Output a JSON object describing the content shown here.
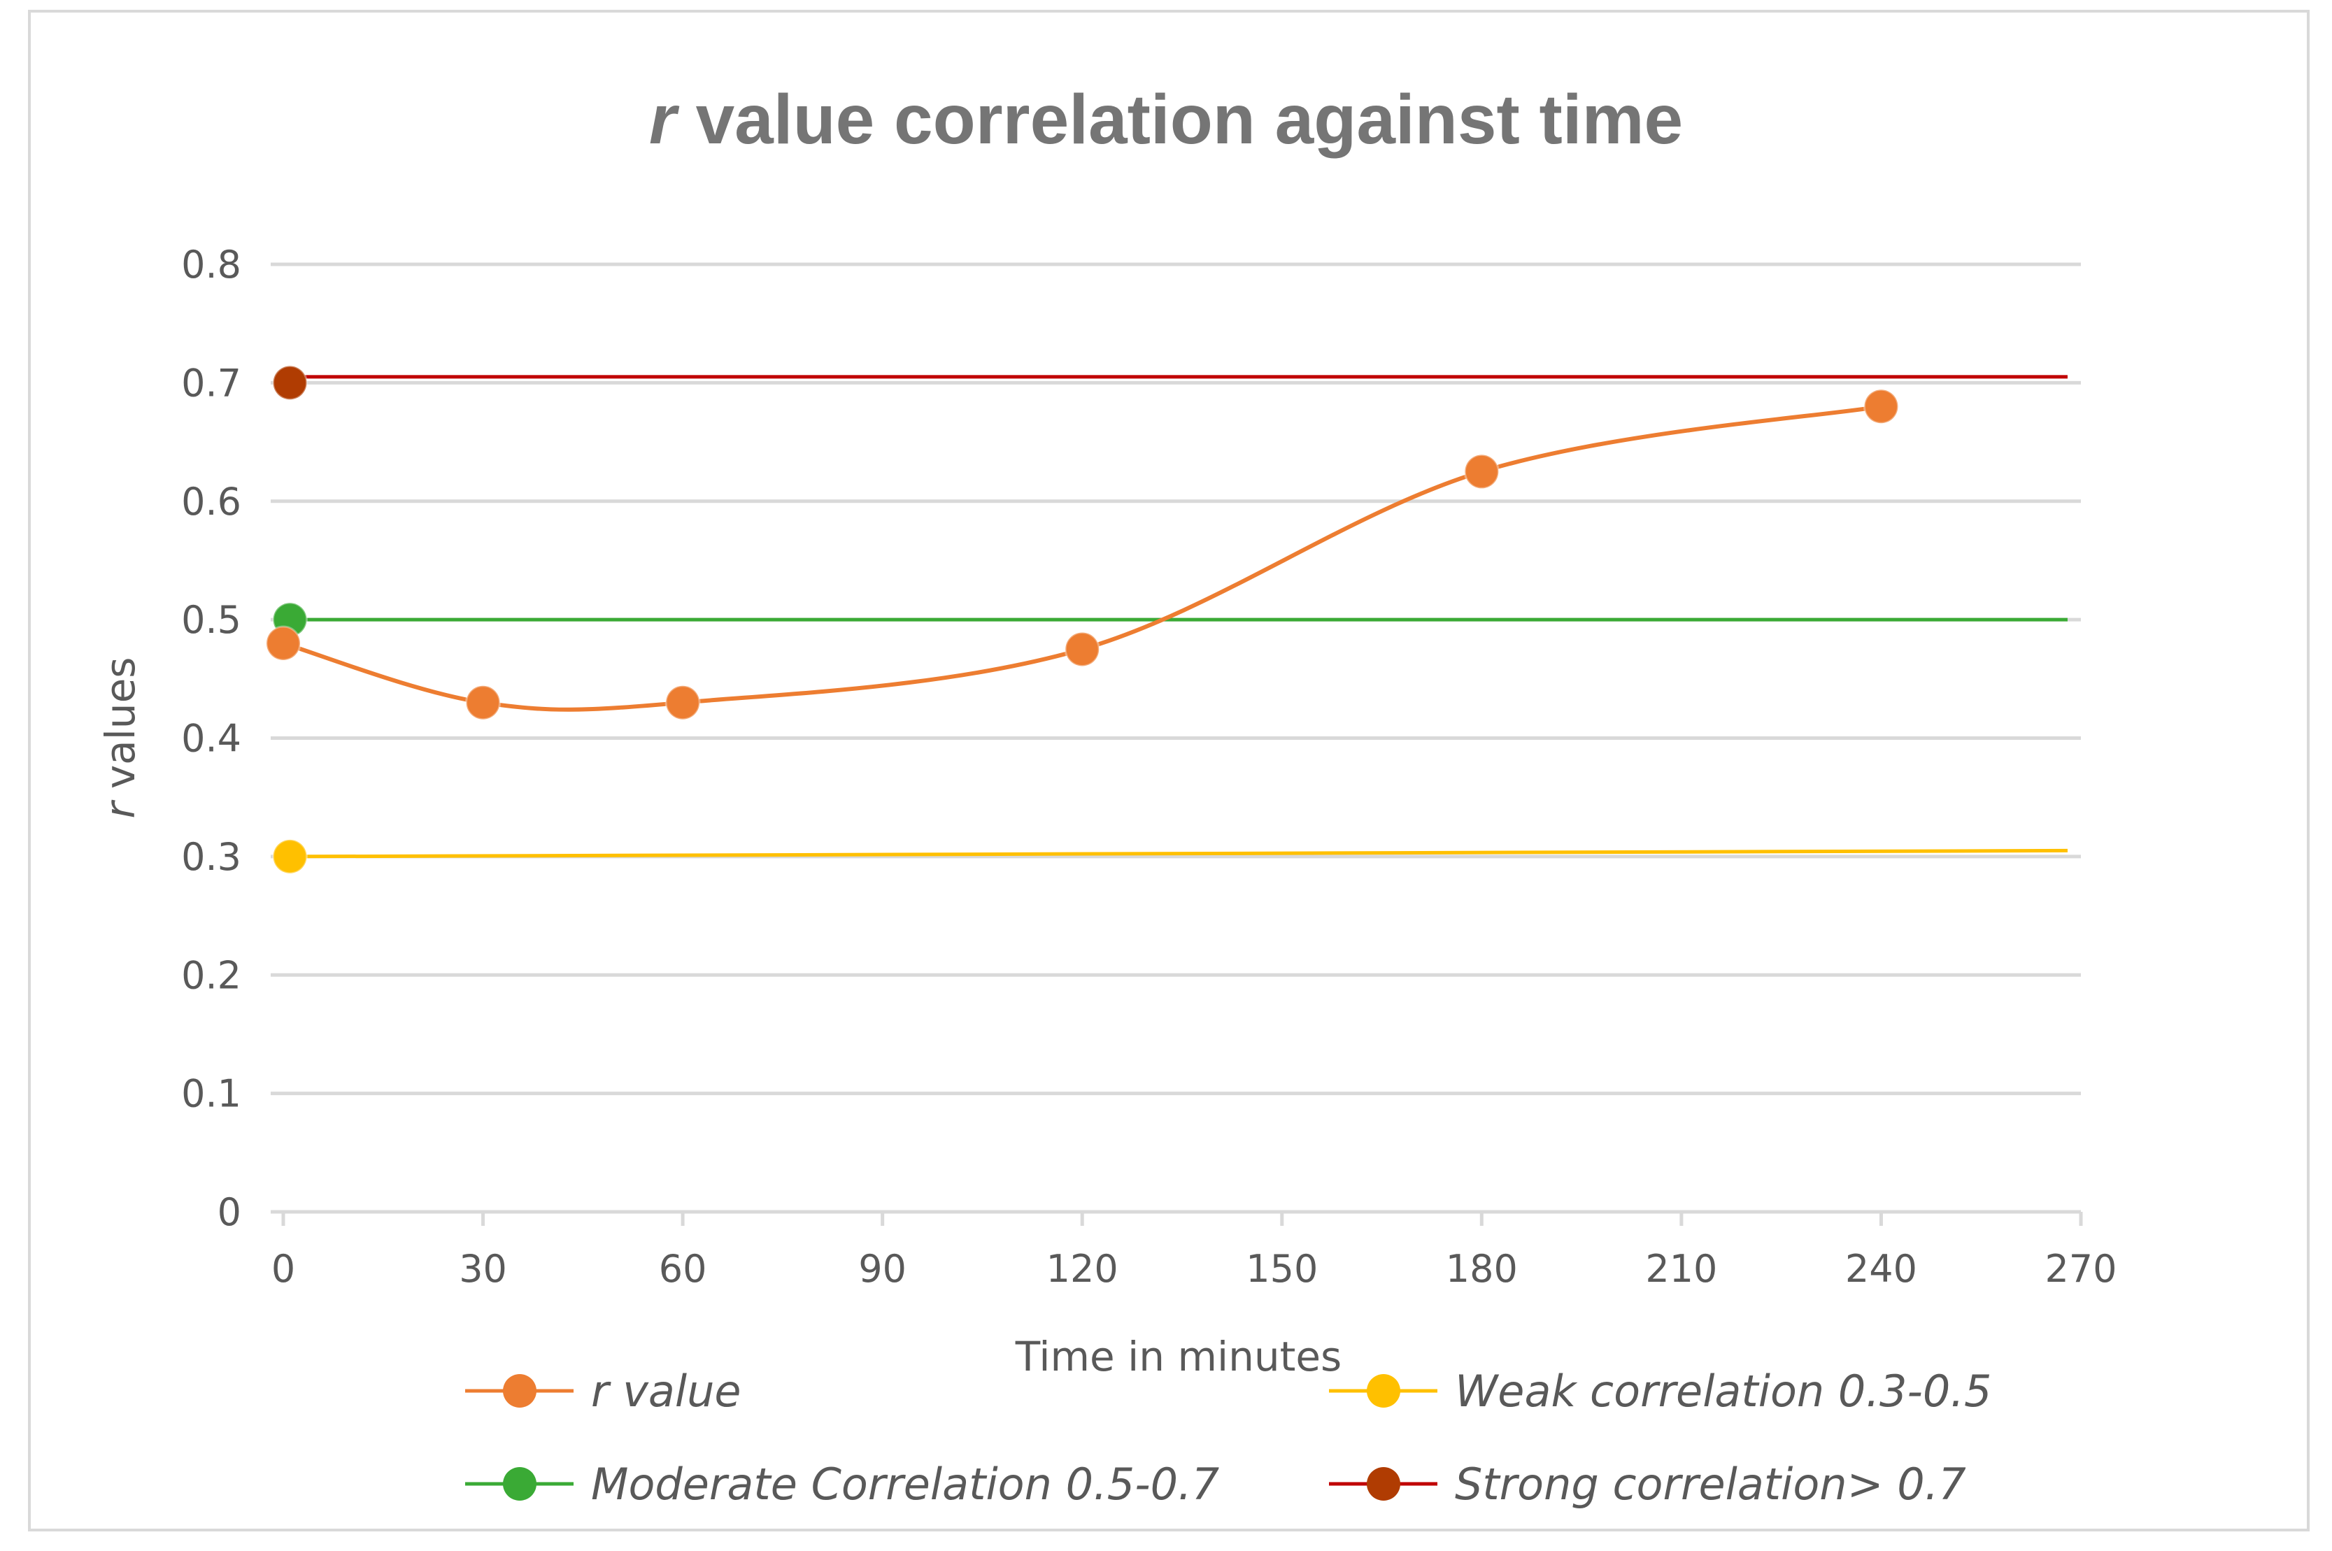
{
  "chart_data": {
    "type": "line",
    "title_italic": "r",
    "title_rest": " value correlation against time",
    "xlabel": "Time in minutes",
    "ylabel_italic": "r",
    "ylabel_rest": " values",
    "xlim": [
      0,
      270
    ],
    "ylim": [
      0,
      0.8
    ],
    "x_ticks": [
      0,
      30,
      60,
      90,
      120,
      150,
      180,
      210,
      240,
      270
    ],
    "y_ticks": [
      0,
      0.1,
      0.2,
      0.3,
      0.4,
      0.5,
      0.6,
      0.7,
      0.8
    ],
    "grid": true,
    "legend_position": "bottom",
    "series": [
      {
        "name": "r value",
        "color": "#ed7d31",
        "smooth": true,
        "points": [
          [
            0,
            0.48
          ],
          [
            30,
            0.43
          ],
          [
            60,
            0.43
          ],
          [
            120,
            0.475
          ],
          [
            180,
            0.625
          ],
          [
            240,
            0.68
          ]
        ],
        "markers": [
          [
            0,
            0.48
          ],
          [
            30,
            0.43
          ],
          [
            60,
            0.43
          ],
          [
            120,
            0.475
          ],
          [
            180,
            0.625
          ],
          [
            240,
            0.68
          ]
        ]
      },
      {
        "name": "Weak correlation 0.3-0.5",
        "color": "#ffc000",
        "smooth": false,
        "points": [
          [
            1,
            0.3
          ],
          [
            268,
            0.305
          ]
        ],
        "markers": [
          [
            1,
            0.3
          ]
        ]
      },
      {
        "name": "Moderate Correlation 0.5-0.7",
        "color": "#3aaa35",
        "smooth": false,
        "points": [
          [
            1,
            0.5
          ],
          [
            268,
            0.5
          ]
        ],
        "markers": [
          [
            1,
            0.5
          ]
        ]
      },
      {
        "name": "Strong correlation> 0.7",
        "color": "#c00000",
        "marker_color": "#b03c02",
        "smooth": false,
        "points": [
          [
            1,
            0.705
          ],
          [
            268,
            0.705
          ]
        ],
        "markers": [
          [
            1,
            0.7
          ]
        ]
      }
    ]
  }
}
